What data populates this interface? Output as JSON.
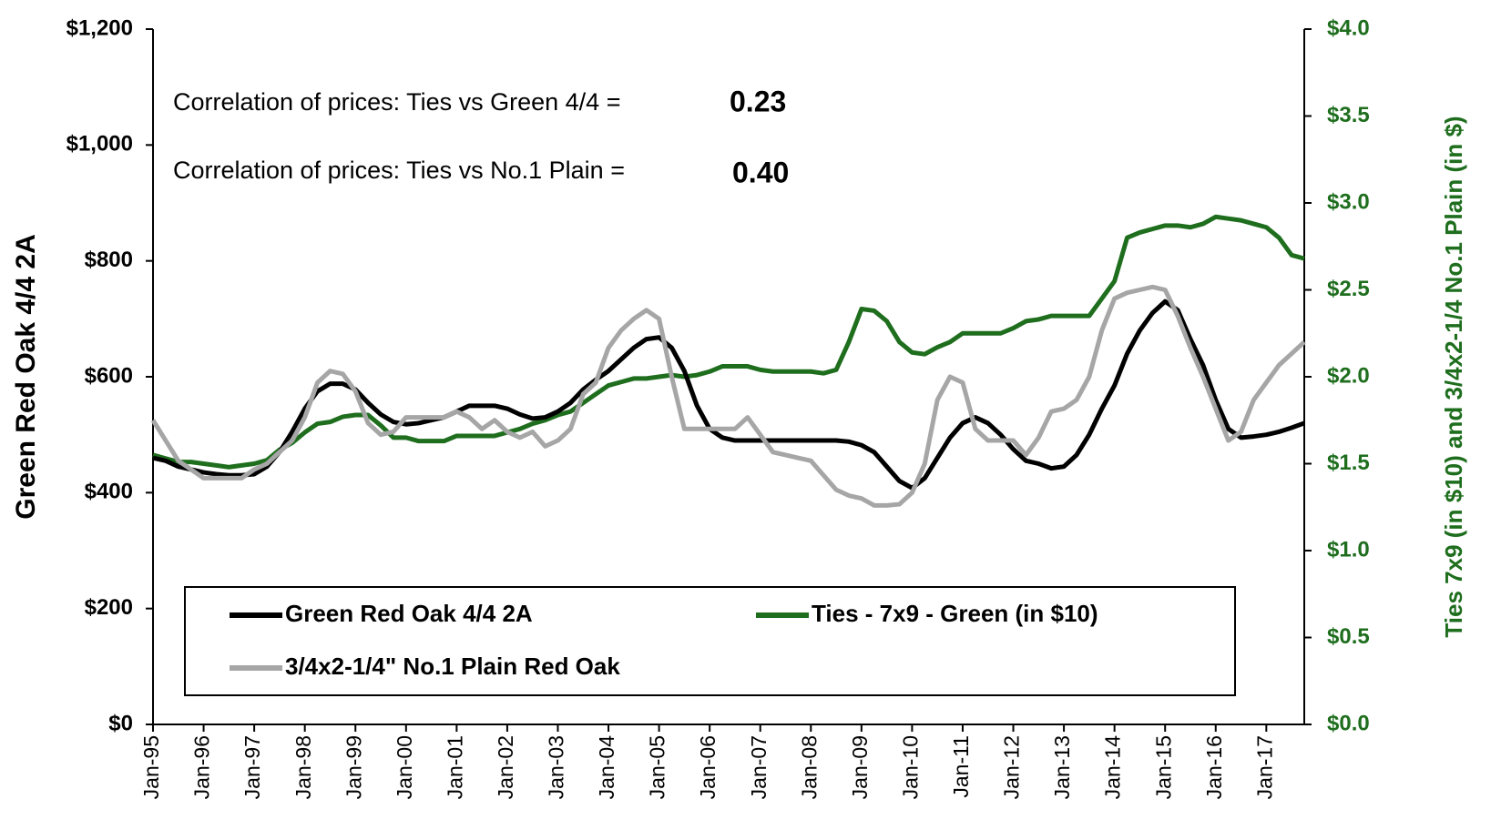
{
  "chart_data": {
    "type": "line",
    "categories": [
      "Jan-95",
      null,
      null,
      null,
      "Jan-96",
      null,
      null,
      null,
      "Jan-97",
      null,
      null,
      null,
      "Jan-98",
      null,
      null,
      null,
      "Jan-99",
      null,
      null,
      null,
      "Jan-00",
      null,
      null,
      null,
      "Jan-01",
      null,
      null,
      null,
      "Jan-02",
      null,
      null,
      null,
      "Jan-03",
      null,
      null,
      null,
      "Jan-04",
      null,
      null,
      null,
      "Jan-05",
      null,
      null,
      null,
      "Jan-06",
      null,
      null,
      null,
      "Jan-07",
      null,
      null,
      null,
      "Jan-08",
      null,
      null,
      null,
      "Jan-09",
      null,
      null,
      null,
      "Jan-10",
      null,
      null,
      null,
      "Jan-11",
      null,
      null,
      null,
      "Jan-12",
      null,
      null,
      null,
      "Jan-13",
      null,
      null,
      null,
      "Jan-14",
      null,
      null,
      null,
      "Jan-15",
      null,
      null,
      null,
      "Jan-16",
      null,
      null,
      null,
      "Jan-17",
      null,
      null,
      null
    ],
    "ylabel": "Green Red Oak 4/4 2A",
    "y2label": "Ties 7x9 (in $10)  and  3/4x2-1/4 No.1 Plain (in $)",
    "ylim": [
      0,
      1200
    ],
    "yticks": [
      {
        "value": 0,
        "label": "$0"
      },
      {
        "value": 200,
        "label": "$200"
      },
      {
        "value": 400,
        "label": "$400"
      },
      {
        "value": 600,
        "label": "$600"
      },
      {
        "value": 800,
        "label": "$800"
      },
      {
        "value": 1000,
        "label": "$1,000"
      },
      {
        "value": 1200,
        "label": "$1,200"
      }
    ],
    "y2lim": [
      0,
      4
    ],
    "y2ticks": [
      {
        "value": 0,
        "label": "$0.0"
      },
      {
        "value": 0.5,
        "label": "$0.5"
      },
      {
        "value": 1,
        "label": "$1.0"
      },
      {
        "value": 1.5,
        "label": "$1.5"
      },
      {
        "value": 2,
        "label": "$2.0"
      },
      {
        "value": 2.5,
        "label": "$2.5"
      },
      {
        "value": 3,
        "label": "$3.0"
      },
      {
        "value": 3.5,
        "label": "$3.5"
      },
      {
        "value": 4,
        "label": "$4.0"
      }
    ],
    "annotations": [
      {
        "text": "Correlation of prices: Ties vs Green 4/4 =",
        "value": "0.23"
      },
      {
        "text": "Correlation of prices: Ties vs No.1 Plain =",
        "value": "0.40"
      }
    ],
    "series": [
      {
        "name": "Green Red Oak 4/4 2A",
        "color": "#000000",
        "values": [
          460,
          455,
          445,
          440,
          435,
          432,
          430,
          430,
          432,
          445,
          470,
          505,
          545,
          575,
          588,
          588,
          578,
          555,
          535,
          522,
          518,
          520,
          525,
          530,
          540,
          550,
          550,
          550,
          545,
          535,
          528,
          530,
          540,
          555,
          578,
          595,
          610,
          630,
          650,
          665,
          668,
          650,
          610,
          550,
          510,
          495,
          490,
          490,
          490,
          490,
          490,
          490,
          490,
          490,
          490,
          488,
          482,
          470,
          445,
          420,
          408,
          425,
          460,
          495,
          520,
          530,
          520,
          500,
          475,
          455,
          450,
          442,
          445,
          465,
          500,
          545,
          585,
          640,
          680,
          710,
          730,
          715,
          665,
          620,
          560,
          510,
          495,
          497,
          500,
          505,
          512,
          520
        ]
      },
      {
        "name": "Ties - 7x9 - Green (in $10)",
        "color": "#1e6e1e",
        "axis": "y2",
        "values": [
          1.55,
          1.53,
          1.51,
          1.51,
          1.5,
          1.49,
          1.48,
          1.49,
          1.5,
          1.52,
          1.58,
          1.62,
          1.68,
          1.73,
          1.74,
          1.77,
          1.78,
          1.78,
          1.72,
          1.65,
          1.65,
          1.63,
          1.63,
          1.63,
          1.66,
          1.66,
          1.66,
          1.66,
          1.68,
          1.7,
          1.73,
          1.75,
          1.78,
          1.8,
          1.85,
          1.9,
          1.95,
          1.97,
          1.99,
          1.99,
          2.0,
          2.01,
          2.0,
          2.01,
          2.03,
          2.06,
          2.06,
          2.06,
          2.04,
          2.03,
          2.03,
          2.03,
          2.03,
          2.02,
          2.04,
          2.2,
          2.39,
          2.38,
          2.32,
          2.2,
          2.14,
          2.13,
          2.17,
          2.2,
          2.25,
          2.25,
          2.25,
          2.25,
          2.28,
          2.32,
          2.33,
          2.35,
          2.35,
          2.35,
          2.35,
          2.45,
          2.55,
          2.8,
          2.83,
          2.85,
          2.87,
          2.87,
          2.86,
          2.88,
          2.92,
          2.91,
          2.9,
          2.88,
          2.86,
          2.8,
          2.7,
          2.68
        ]
      },
      {
        "name": "3/4x2-1/4\" No.1 Plain Red Oak",
        "color": "#a6a6a6",
        "values": [
          525,
          490,
          455,
          440,
          425,
          425,
          425,
          425,
          440,
          450,
          470,
          490,
          530,
          590,
          610,
          605,
          575,
          520,
          500,
          505,
          530,
          530,
          530,
          530,
          540,
          530,
          510,
          525,
          505,
          495,
          505,
          480,
          490,
          510,
          570,
          590,
          650,
          680,
          700,
          715,
          700,
          600,
          510,
          510,
          510,
          510,
          510,
          530,
          500,
          470,
          465,
          460,
          455,
          430,
          405,
          395,
          390,
          378,
          378,
          380,
          400,
          450,
          560,
          600,
          590,
          510,
          490,
          490,
          490,
          465,
          495,
          540,
          545,
          560,
          600,
          680,
          735,
          745,
          750,
          755,
          750,
          705,
          650,
          600,
          545,
          490,
          505,
          560,
          590,
          620,
          640,
          660
        ]
      }
    ]
  }
}
